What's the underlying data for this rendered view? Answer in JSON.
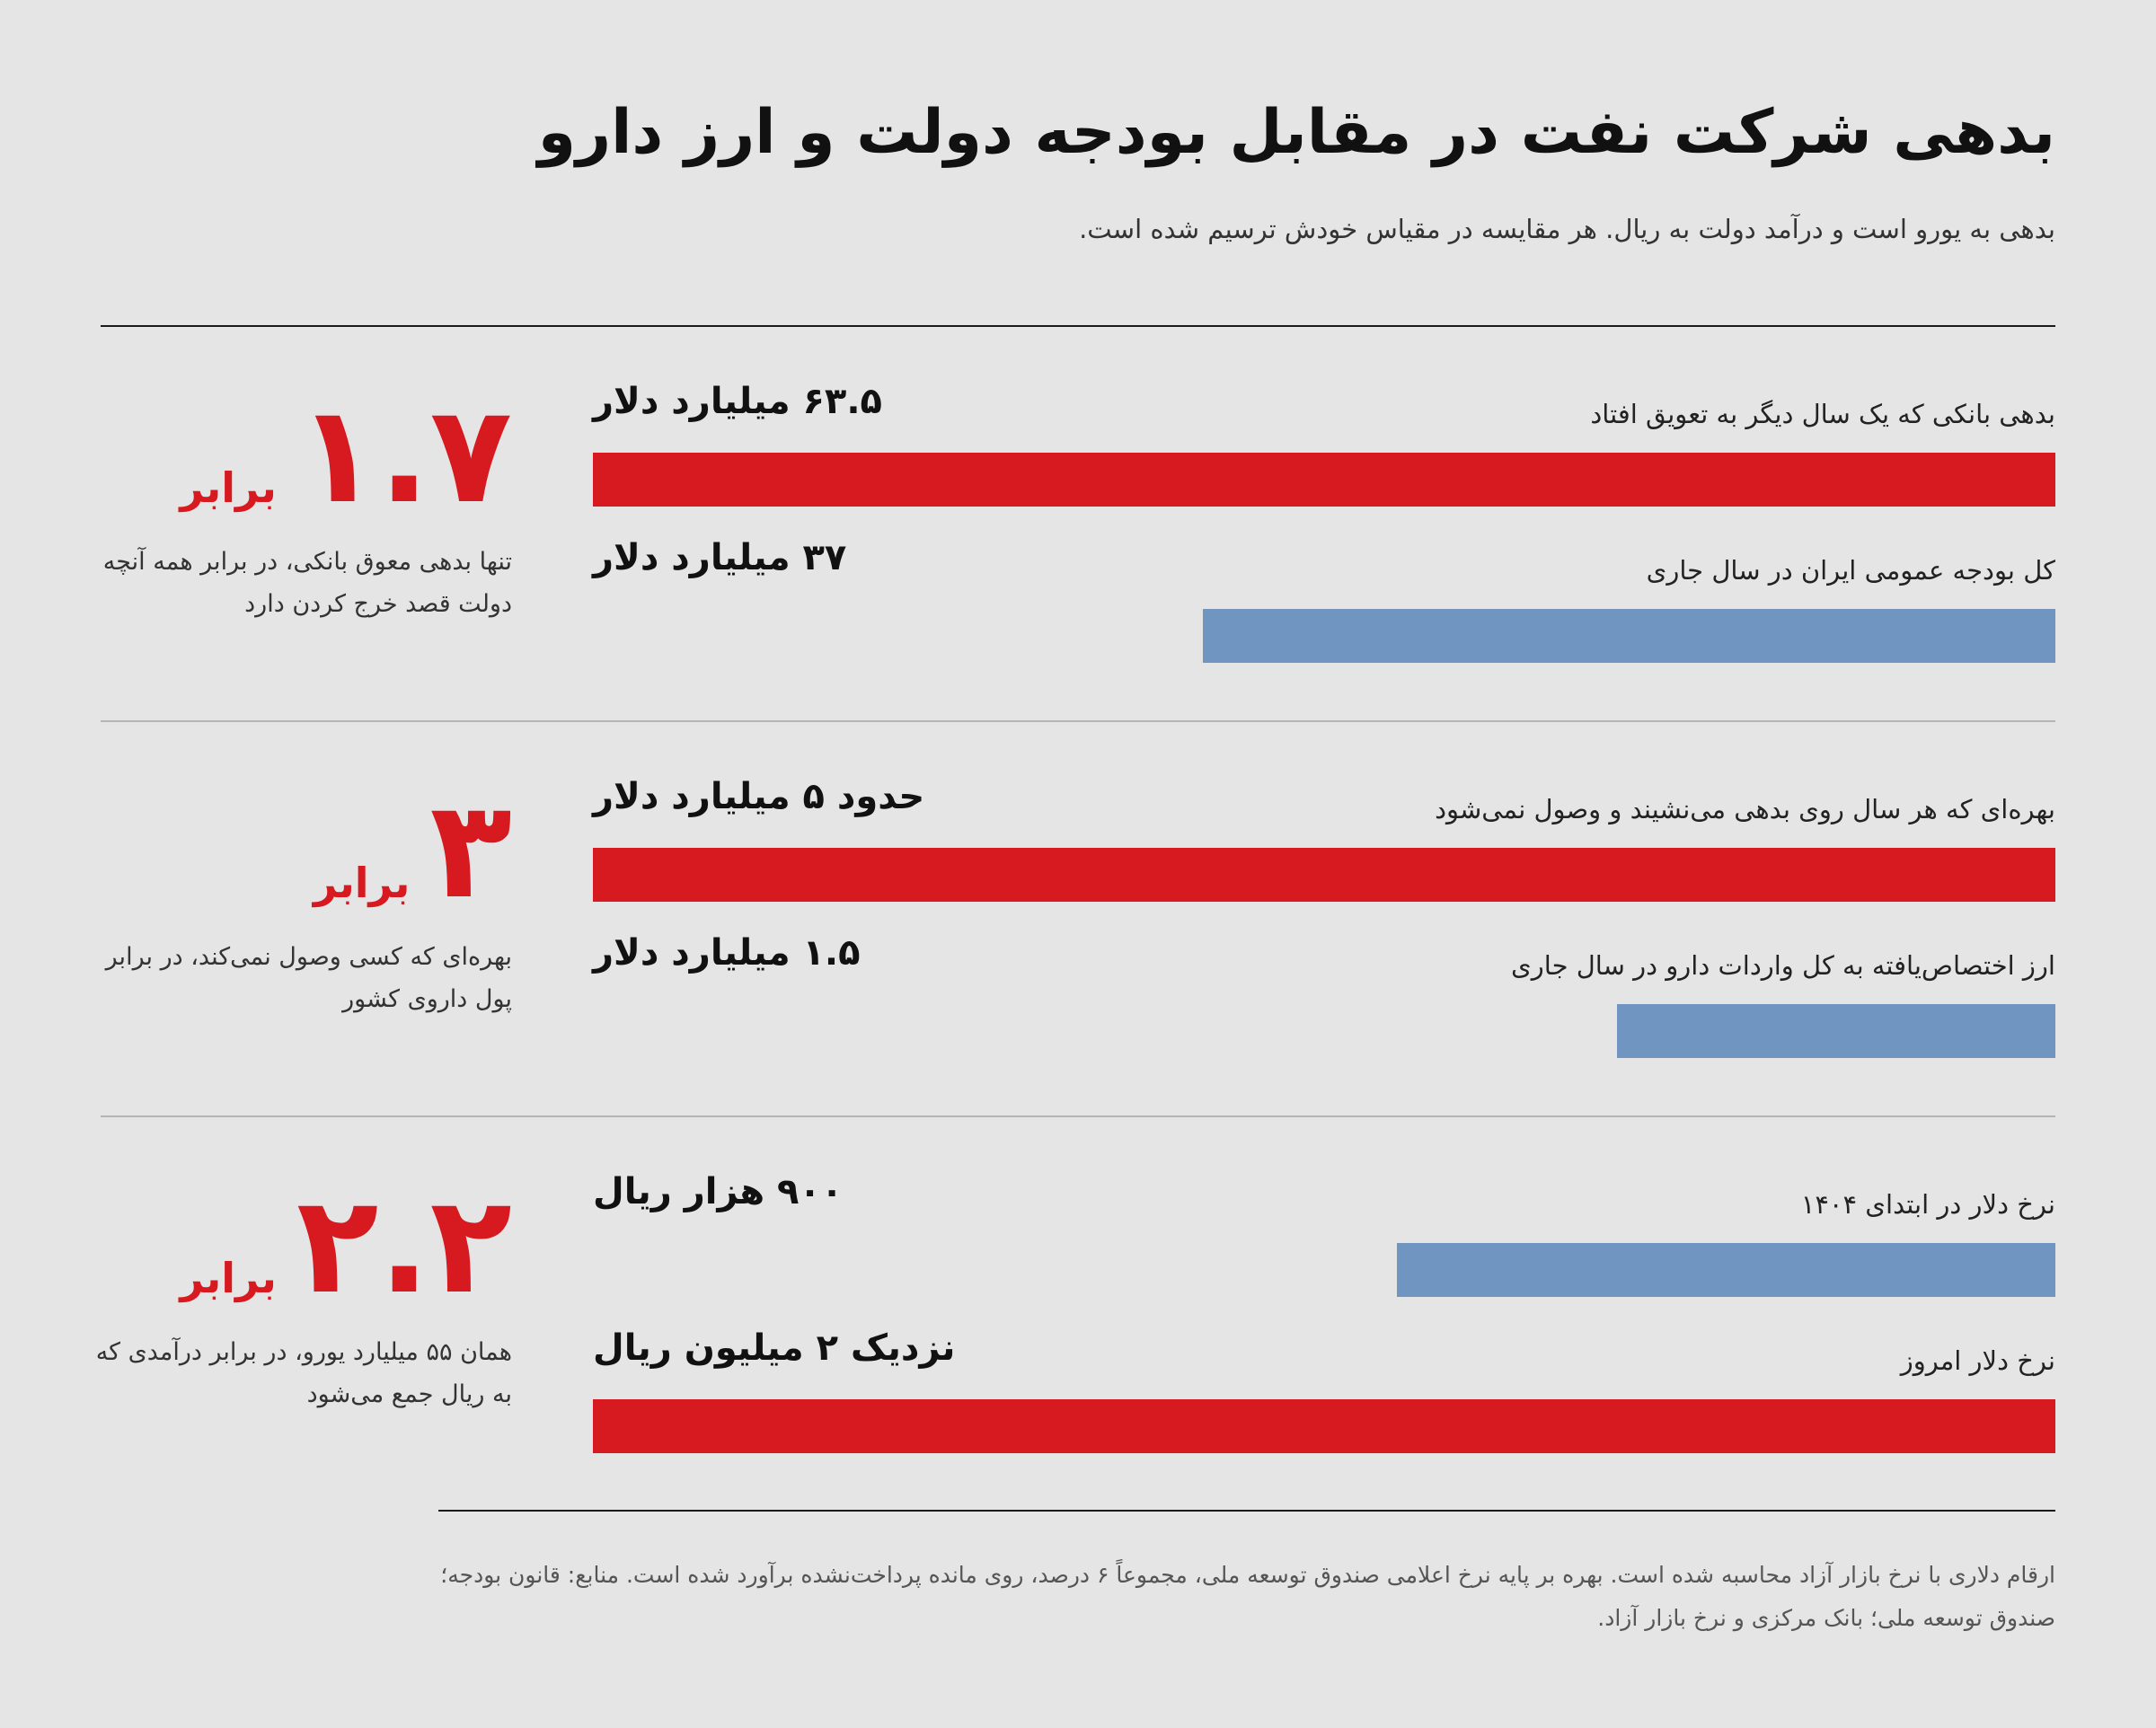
{
  "title": "بدهی شرکت نفت در مقابل بودجه دولت و ارز دارو",
  "subtitle": "بدهی به یورو است و درآمد دولت به ریال. هر مقایسه در مقیاس خودش ترسیم شده است.",
  "colors": {
    "highlight": "#d71920",
    "comparison": "#7095c0",
    "background": "#e5e5e5"
  },
  "chart_data": [
    {
      "type": "bar",
      "orientation": "horizontal",
      "ratio": "۱.۷",
      "ratio_unit": "برابر",
      "note": "تنها بدهی معوق بانکی، در برابر همه آنچه دولت قصد خرج کردن دارد",
      "items": [
        {
          "label": "بدهی بانکی که یک سال دیگر به تعویق افتاد",
          "value": 63.5,
          "value_label": "۶۳.۵ میلیارد دلار",
          "color": "#d71920"
        },
        {
          "label": "کل بودجه عمومی ایران در سال جاری",
          "value": 37,
          "value_label": "۳۷ میلیارد دلار",
          "color": "#7095c0"
        }
      ]
    },
    {
      "type": "bar",
      "orientation": "horizontal",
      "ratio": "۳",
      "ratio_unit": "برابر",
      "note": "بهره‌ای که کسی وصول نمی‌کند، در برابر پول داروی کشور",
      "items": [
        {
          "label": "بهره‌ای که هر سال روی بدهی می‌نشیند و وصول نمی‌شود",
          "value": 5,
          "value_label": "حدود ۵ میلیارد دلار",
          "color": "#d71920"
        },
        {
          "label": "ارز اختصاص‌یافته به کل واردات دارو در سال جاری",
          "value": 1.5,
          "value_label": "۱.۵ میلیارد دلار",
          "color": "#7095c0"
        }
      ]
    },
    {
      "type": "bar",
      "orientation": "horizontal",
      "ratio": "۲.۲",
      "ratio_unit": "برابر",
      "note": "همان ۵۵ میلیارد یورو، در برابر درآمدی که به ریال جمع می‌شود",
      "items": [
        {
          "label": "نرخ دلار در ابتدای ۱۴۰۴",
          "value": 900,
          "value_label": "۹۰۰ هزار ریال",
          "color": "#7095c0"
        },
        {
          "label": "نرخ دلار امروز",
          "value": 2000,
          "value_label": "نزدیک ۲ میلیون ریال",
          "color": "#d71920"
        }
      ]
    }
  ],
  "footnote": "ارقام دلاری با نرخ بازار آزاد محاسبه شده است. بهره بر پایه نرخ اعلامی صندوق توسعه ملی، مجموعاً ۶ درصد، روی مانده پرداخت‌نشده برآورد شده است. منابع: قانون بودجه؛ صندوق توسعه ملی؛ بانک مرکزی و نرخ بازار آزاد."
}
